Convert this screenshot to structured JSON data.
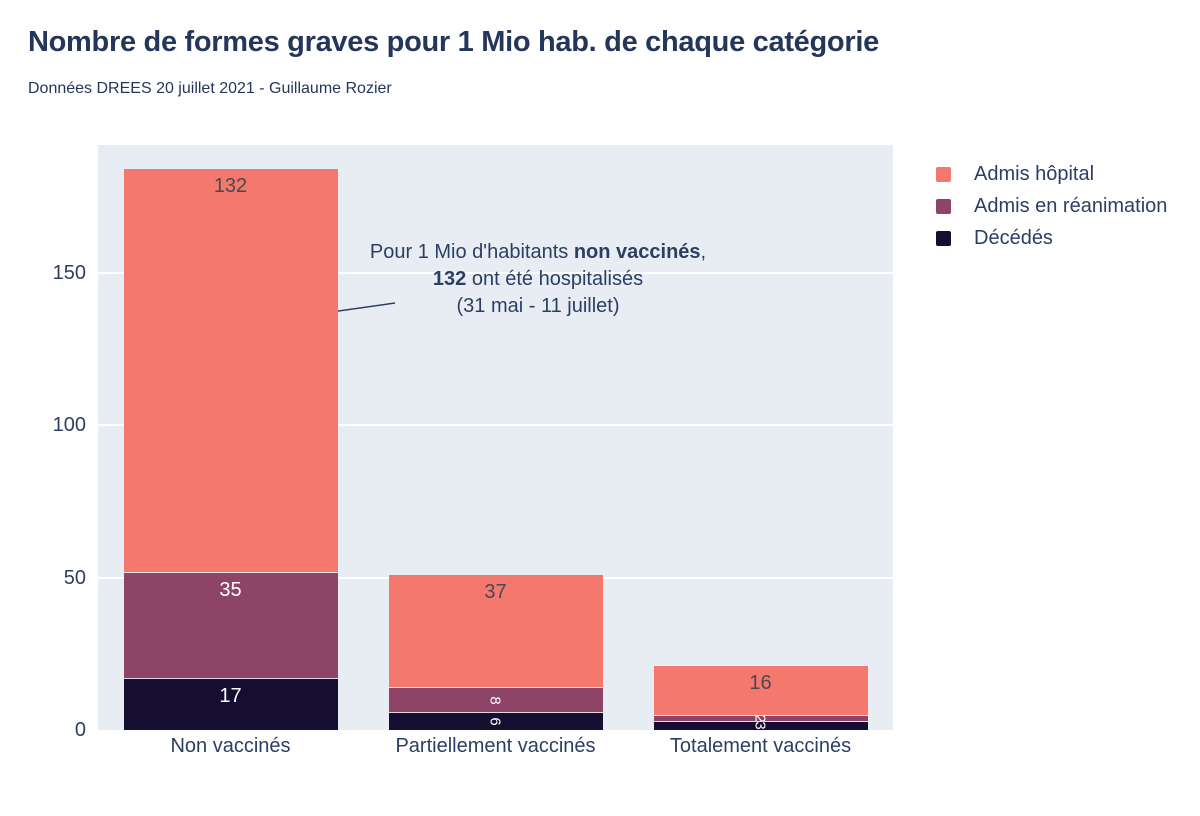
{
  "header": {
    "title": "Nombre de formes graves pour 1 Mio hab. de chaque catégorie",
    "subtitle": "Données DREES 20 juillet 2021 - Guillaume Rozier"
  },
  "legend": {
    "items": [
      {
        "label": "Admis hôpital",
        "color": "#F5786F"
      },
      {
        "label": "Admis en réanimation",
        "color": "#8D4466"
      },
      {
        "label": "Décédés",
        "color": "#150E31"
      }
    ]
  },
  "annotation": {
    "line1_prefix": "Pour 1 Mio d'habitants ",
    "line1_bold": "non vaccinés",
    "line1_suffix": ",",
    "line2_bold": "132",
    "line2_rest": " ont été hospitalisés",
    "line3": "(31 mai - 11 juillet)"
  },
  "chart_data": {
    "type": "bar",
    "stacked": true,
    "title": "Nombre de formes graves pour 1 Mio hab. de chaque catégorie",
    "subtitle": "Données DREES 20 juillet 2021 - Guillaume Rozier",
    "categories": [
      "Non vaccinés",
      "Partiellement vaccinés",
      "Totalement vaccinés"
    ],
    "series": [
      {
        "name": "Admis hôpital",
        "color": "#F5786F",
        "values": [
          132,
          37,
          16
        ],
        "label_color": "#474A52"
      },
      {
        "name": "Admis en réanimation",
        "color": "#8D4466",
        "values": [
          35,
          8,
          2
        ],
        "label_color": "#FFFFFF"
      },
      {
        "name": "Décédés",
        "color": "#150E31",
        "values": [
          17,
          6,
          3
        ],
        "label_color": "#FFFFFF"
      }
    ],
    "totals": [
      184,
      51,
      21
    ],
    "yticks": [
      0,
      50,
      100,
      150
    ],
    "ylim": [
      0,
      192
    ],
    "grid": "horizontal-white-lines",
    "plot_bg": "#E8EDF4",
    "text_color": "#2C3E63",
    "legend_position": "outside-top-right",
    "annotation_text": "Pour 1 Mio d'habitants non vaccinés, 132 ont été hospitalisés (31 mai - 11 juillet)"
  }
}
